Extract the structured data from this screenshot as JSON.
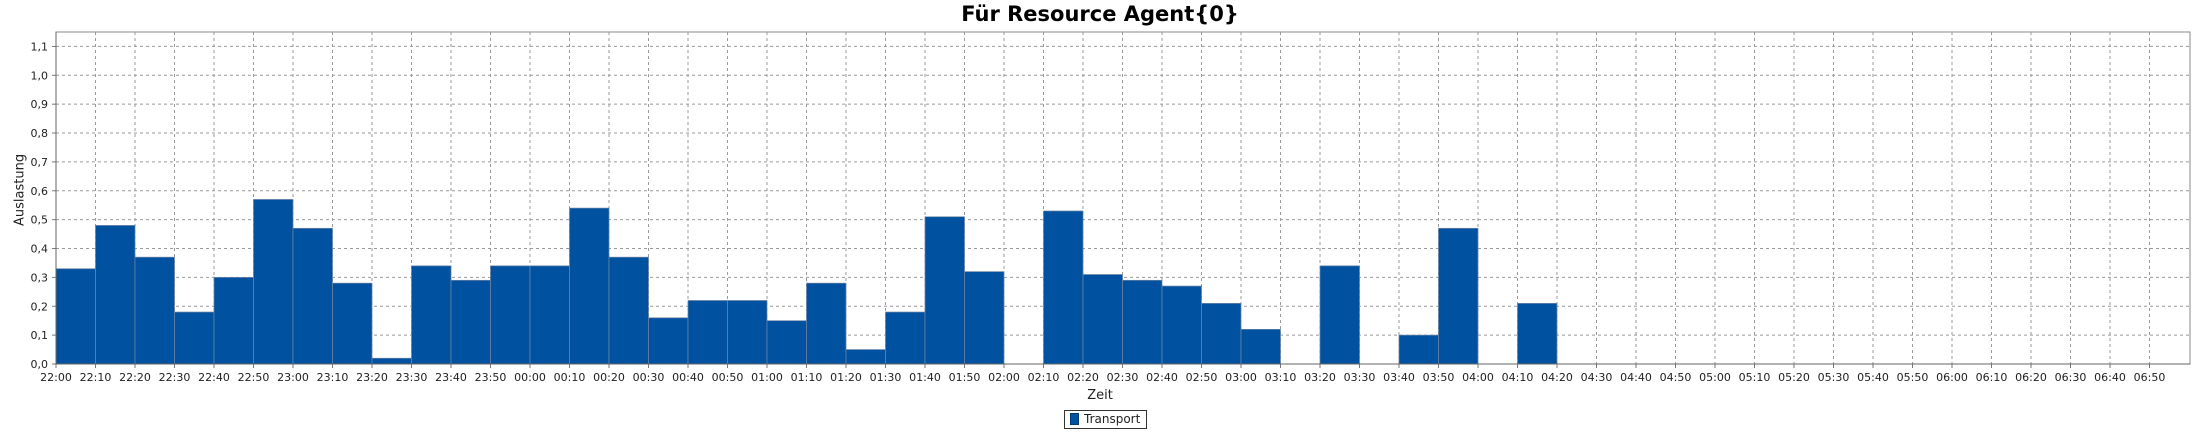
{
  "chart_data": {
    "type": "bar",
    "title": "Für Resource Agent{0}",
    "xlabel": "Zeit",
    "ylabel": "Auslastung",
    "ylim": [
      0,
      1.15
    ],
    "yticks": [
      "0,0",
      "0,1",
      "0,2",
      "0,3",
      "0,4",
      "0,5",
      "0,6",
      "0,7",
      "0,8",
      "0,9",
      "1,0",
      "1,1"
    ],
    "grid": true,
    "legend_position": "bottom-center",
    "bar_color": "#0051a0",
    "categories": [
      "22:00",
      "22:10",
      "22:20",
      "22:30",
      "22:40",
      "22:50",
      "23:00",
      "23:10",
      "23:20",
      "23:30",
      "23:40",
      "23:50",
      "00:00",
      "00:10",
      "00:20",
      "00:30",
      "00:40",
      "00:50",
      "01:00",
      "01:10",
      "01:20",
      "01:30",
      "01:40",
      "01:50",
      "02:00",
      "02:10",
      "02:20",
      "02:30",
      "02:40",
      "02:50",
      "03:00",
      "03:10",
      "03:20",
      "03:30",
      "03:40",
      "03:50",
      "04:00",
      "04:10",
      "04:20",
      "04:30",
      "04:40",
      "04:50",
      "05:00",
      "05:10",
      "05:20",
      "05:30",
      "05:40",
      "05:50",
      "06:00",
      "06:10",
      "06:20",
      "06:30",
      "06:40",
      "06:50"
    ],
    "series": [
      {
        "name": "Transport",
        "values": [
          0.33,
          0.48,
          0.37,
          0.18,
          0.3,
          0.57,
          0.47,
          0.28,
          0.02,
          0.34,
          0.29,
          0.34,
          0.34,
          0.54,
          0.37,
          0.16,
          0.22,
          0.22,
          0.15,
          0.28,
          0.05,
          0.18,
          0.51,
          0.32,
          0,
          0.53,
          0.31,
          0.29,
          0.27,
          0.21,
          0.12,
          0,
          0.34,
          0,
          0.1,
          0.47,
          0,
          0.21,
          0,
          0,
          0,
          0,
          0,
          0,
          0,
          0,
          0,
          0,
          0,
          0,
          0,
          0,
          0,
          0
        ]
      }
    ]
  }
}
